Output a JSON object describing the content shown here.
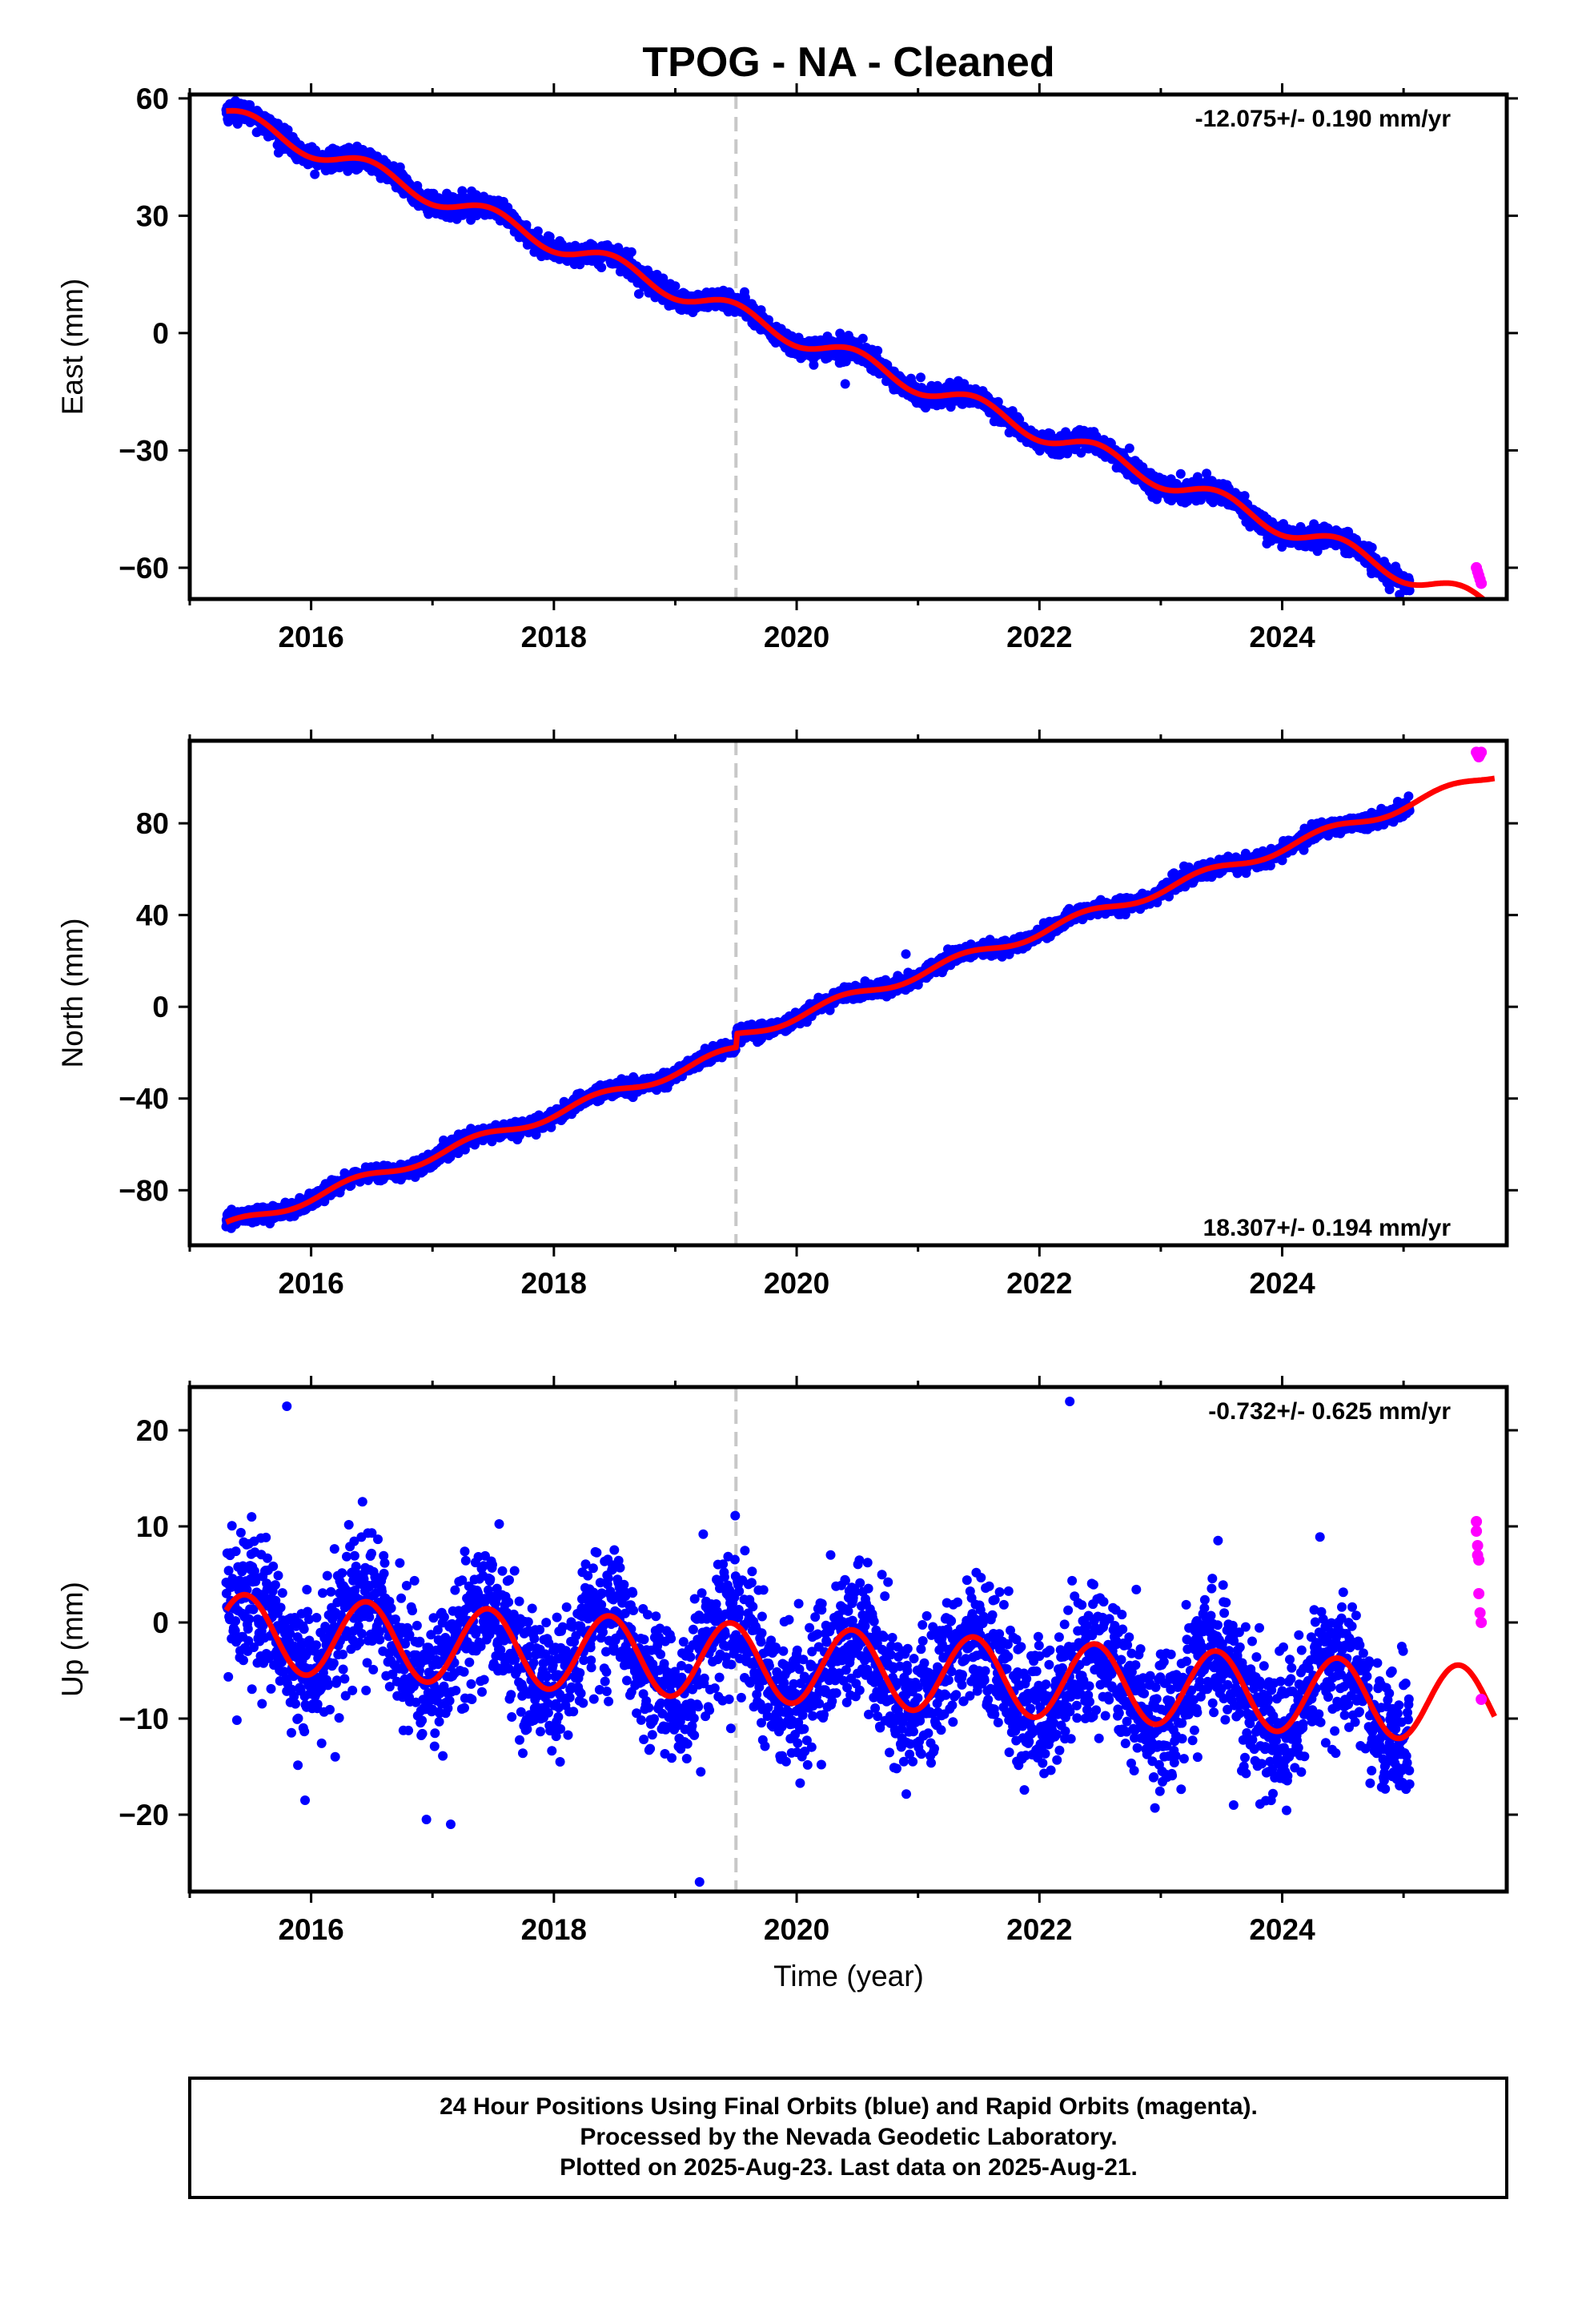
{
  "title": "TPOG  - NA - Cleaned",
  "x_axis_label": "Time (year)",
  "caption": [
    "24 Hour Positions Using Final Orbits (blue) and Rapid Orbits (magenta).",
    "Processed by the Nevada Geodetic Laboratory.",
    "Plotted on 2025-Aug-23. Last data on 2025-Aug-21."
  ],
  "colors": {
    "final_orbits": "#0000ff",
    "rapid_orbits": "#ff00ff",
    "model_fit": "#ff0000",
    "break_line": "#c8c8c8"
  },
  "chart_data": [
    {
      "type": "scatter",
      "panel": "east",
      "ylabel": "East (mm)",
      "rate": "-12.075+/- 0.190 mm/yr",
      "xlim": [
        2015.0,
        2025.85
      ],
      "ylim": [
        -68,
        61
      ],
      "xticks": [
        2016,
        2018,
        2020,
        2022,
        2024
      ],
      "yticks": [
        -60,
        -30,
        0,
        30,
        60
      ],
      "break_epoch": 2019.5,
      "model": {
        "offset": 55.8,
        "t0": 2015.3,
        "slope": -12.075,
        "seasonal_amp": 2.5,
        "seasonal_phase": 0.4,
        "jump": 0
      },
      "final_orbits": {
        "start": 2015.3,
        "end": 2025.05,
        "scatter_mm": 1.3,
        "count": 3300
      },
      "rapid_orbits": {
        "x": [
          2025.6,
          2025.61,
          2025.62,
          2025.63,
          2025.64
        ],
        "y": [
          -60,
          -61,
          -62,
          -63,
          -64
        ]
      },
      "outliers": [
        [
          2018.7,
          10
        ],
        [
          2018.9,
          14
        ],
        [
          2019.0,
          12
        ],
        [
          2020.4,
          -13
        ],
        [
          2024.97,
          -64
        ]
      ]
    },
    {
      "type": "scatter",
      "panel": "north",
      "ylabel": "North (mm)",
      "rate": "18.307+/- 0.194 mm/yr",
      "xlim": [
        2015.0,
        2025.85
      ],
      "ylim": [
        -104,
        116
      ],
      "xticks": [
        2016,
        2018,
        2020,
        2022,
        2024
      ],
      "yticks": [
        -80,
        -40,
        0,
        40,
        80
      ],
      "break_epoch": 2019.5,
      "model": {
        "offset": -96,
        "t0": 2015.3,
        "slope": 18.307,
        "seasonal_amp": 2.2,
        "seasonal_phase": 1.2,
        "jump": 6
      },
      "final_orbits": {
        "start": 2015.3,
        "end": 2025.05,
        "scatter_mm": 1.6,
        "count": 3300
      },
      "rapid_orbits": {
        "x": [
          2025.6,
          2025.61,
          2025.62,
          2025.63,
          2025.64
        ],
        "y": [
          111,
          110,
          109,
          110,
          111
        ]
      },
      "outliers": [
        [
          2020.9,
          23
        ],
        [
          2019.7,
          -12
        ]
      ]
    },
    {
      "type": "scatter",
      "panel": "up",
      "ylabel": "Up (mm)",
      "rate": "-0.732+/- 0.625 mm/yr",
      "xlim": [
        2015.0,
        2025.85
      ],
      "ylim": [
        -28,
        24.5
      ],
      "xticks": [
        2016,
        2018,
        2020,
        2022,
        2024
      ],
      "yticks": [
        -20,
        -10,
        0,
        10,
        20
      ],
      "break_epoch": 2019.5,
      "model": {
        "offset": -1.0,
        "t0": 2015.3,
        "slope": -0.732,
        "seasonal_amp": 4.0,
        "seasonal_phase": 0.6,
        "jump": 0
      },
      "final_orbits": {
        "start": 2015.3,
        "end": 2025.05,
        "scatter_mm": 3.6,
        "count": 3300
      },
      "rapid_orbits": {
        "x": [
          2025.6,
          2025.6,
          2025.61,
          2025.61,
          2025.62,
          2025.62,
          2025.63,
          2025.64,
          2025.64
        ],
        "y": [
          10.5,
          9.5,
          8,
          7,
          6.5,
          3,
          1,
          0,
          -8
        ]
      },
      "outliers": [
        [
          2015.8,
          22.5
        ],
        [
          2015.95,
          -18.5
        ],
        [
          2016.95,
          -20.5
        ],
        [
          2017.15,
          -21
        ],
        [
          2019.2,
          -27
        ],
        [
          2022.25,
          23
        ],
        [
          2023.6,
          -19
        ]
      ]
    }
  ]
}
